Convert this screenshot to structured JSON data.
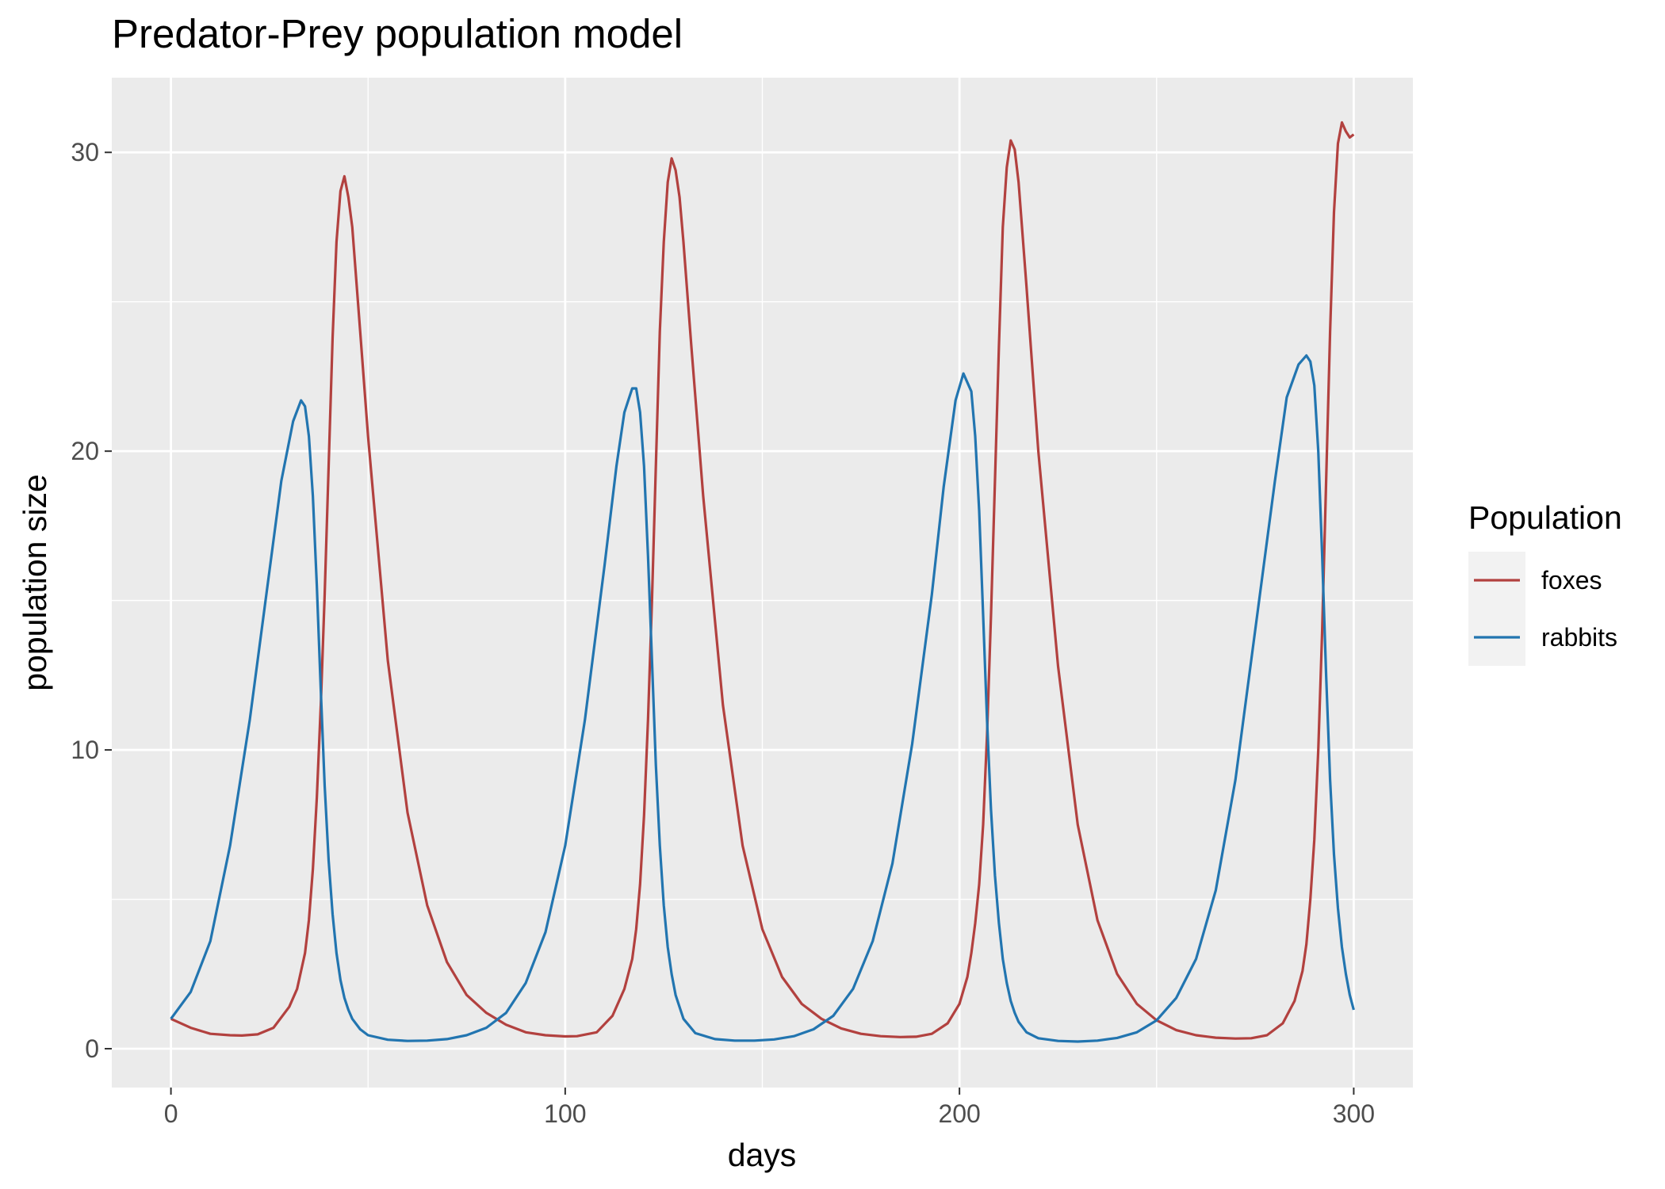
{
  "chart_data": {
    "type": "line",
    "title": "Predator-Prey population model",
    "xlabel": "days",
    "ylabel": "population size",
    "xlim": [
      -15,
      315
    ],
    "ylim": [
      -1.3,
      32.5
    ],
    "x_ticks": [
      0,
      100,
      200,
      300
    ],
    "y_ticks": [
      0,
      10,
      20,
      30
    ],
    "x_minor": [
      50,
      150,
      250
    ],
    "y_minor": [
      5,
      15,
      25
    ],
    "grid": true,
    "legend": {
      "title": "Population",
      "position": "right"
    },
    "colors": {
      "foxes": "#B2413F",
      "rabbits": "#2275B0",
      "panel": "#EBEBEB",
      "grid": "#FFFFFF"
    },
    "series": [
      {
        "name": "foxes",
        "x": [
          0,
          5,
          10,
          15,
          18,
          22,
          26,
          30,
          32,
          34,
          35,
          36,
          37,
          38,
          39,
          40,
          41,
          42,
          43,
          44,
          45,
          46,
          48,
          50,
          55,
          60,
          65,
          70,
          75,
          80,
          85,
          90,
          95,
          100,
          103,
          108,
          112,
          115,
          117,
          118,
          119,
          120,
          121,
          122,
          123,
          124,
          125,
          126,
          127,
          128,
          129,
          130,
          132,
          135,
          140,
          145,
          150,
          155,
          160,
          165,
          170,
          175,
          180,
          185,
          189,
          193,
          197,
          200,
          202,
          203,
          204,
          205,
          206,
          207,
          208,
          209,
          210,
          211,
          212,
          213,
          214,
          215,
          217,
          220,
          225,
          230,
          235,
          240,
          245,
          250,
          255,
          260,
          265,
          270,
          274,
          278,
          282,
          285,
          287,
          288,
          289,
          290,
          291,
          292,
          293,
          294,
          295,
          296,
          297,
          298,
          299,
          300
        ],
        "y": [
          1.0,
          0.7,
          0.5,
          0.45,
          0.44,
          0.48,
          0.7,
          1.4,
          2.0,
          3.2,
          4.3,
          6.0,
          8.4,
          11.5,
          15.2,
          19.5,
          23.8,
          27.0,
          28.7,
          29.2,
          28.5,
          27.5,
          24.0,
          20.5,
          13.0,
          7.9,
          4.8,
          2.9,
          1.8,
          1.2,
          0.8,
          0.55,
          0.45,
          0.41,
          0.42,
          0.55,
          1.1,
          2.0,
          3.0,
          4.0,
          5.5,
          7.8,
          11.0,
          15.0,
          19.5,
          24.0,
          27.0,
          29.0,
          29.8,
          29.4,
          28.5,
          27.0,
          23.5,
          18.5,
          11.5,
          6.8,
          4.0,
          2.4,
          1.5,
          1.0,
          0.68,
          0.5,
          0.42,
          0.39,
          0.4,
          0.5,
          0.85,
          1.5,
          2.4,
          3.2,
          4.2,
          5.5,
          7.5,
          10.5,
          14.5,
          19.0,
          23.5,
          27.5,
          29.5,
          30.4,
          30.1,
          29.0,
          25.5,
          20.0,
          12.8,
          7.5,
          4.3,
          2.5,
          1.5,
          0.95,
          0.62,
          0.45,
          0.37,
          0.34,
          0.35,
          0.45,
          0.85,
          1.6,
          2.6,
          3.5,
          5.0,
          7.0,
          10.0,
          14.0,
          19.0,
          24.0,
          28.0,
          30.3,
          31.0,
          30.7,
          30.5,
          30.6
        ]
      },
      {
        "name": "rabbits",
        "x": [
          0,
          5,
          10,
          15,
          20,
          25,
          28,
          31,
          33,
          34,
          35,
          36,
          37,
          38,
          39,
          40,
          41,
          42,
          43,
          44,
          45,
          46,
          48,
          50,
          55,
          60,
          65,
          70,
          75,
          80,
          85,
          90,
          95,
          100,
          105,
          110,
          113,
          115,
          117,
          118,
          119,
          120,
          121,
          122,
          123,
          124,
          125,
          126,
          127,
          128,
          130,
          133,
          138,
          143,
          148,
          153,
          158,
          163,
          168,
          173,
          178,
          183,
          188,
          193,
          196,
          199,
          201,
          203,
          204,
          205,
          206,
          207,
          208,
          209,
          210,
          211,
          212,
          213,
          214,
          215,
          217,
          220,
          225,
          230,
          235,
          240,
          245,
          250,
          255,
          260,
          265,
          270,
          275,
          280,
          283,
          286,
          288,
          289,
          290,
          291,
          292,
          293,
          294,
          295,
          296,
          297,
          298,
          299,
          300
        ],
        "y": [
          1.0,
          1.9,
          3.6,
          6.8,
          11.0,
          16.0,
          19.0,
          21.0,
          21.7,
          21.5,
          20.5,
          18.5,
          15.5,
          12.0,
          8.8,
          6.3,
          4.5,
          3.2,
          2.3,
          1.7,
          1.3,
          1.0,
          0.65,
          0.45,
          0.3,
          0.26,
          0.27,
          0.32,
          0.45,
          0.7,
          1.2,
          2.2,
          3.9,
          6.8,
          11.0,
          16.2,
          19.5,
          21.3,
          22.1,
          22.1,
          21.3,
          19.5,
          16.5,
          13.0,
          9.5,
          6.8,
          4.8,
          3.4,
          2.5,
          1.8,
          1.0,
          0.52,
          0.32,
          0.27,
          0.27,
          0.31,
          0.42,
          0.65,
          1.1,
          2.0,
          3.6,
          6.2,
          10.2,
          15.2,
          18.8,
          21.7,
          22.6,
          22.0,
          20.5,
          18.0,
          14.5,
          11.0,
          8.0,
          5.8,
          4.2,
          3.0,
          2.2,
          1.6,
          1.2,
          0.9,
          0.55,
          0.35,
          0.26,
          0.24,
          0.27,
          0.36,
          0.55,
          0.95,
          1.7,
          3.0,
          5.3,
          9.0,
          14.0,
          19.0,
          21.8,
          22.9,
          23.2,
          23.0,
          22.2,
          20.0,
          16.5,
          12.5,
          9.0,
          6.5,
          4.7,
          3.4,
          2.5,
          1.8,
          1.3
        ]
      }
    ]
  }
}
